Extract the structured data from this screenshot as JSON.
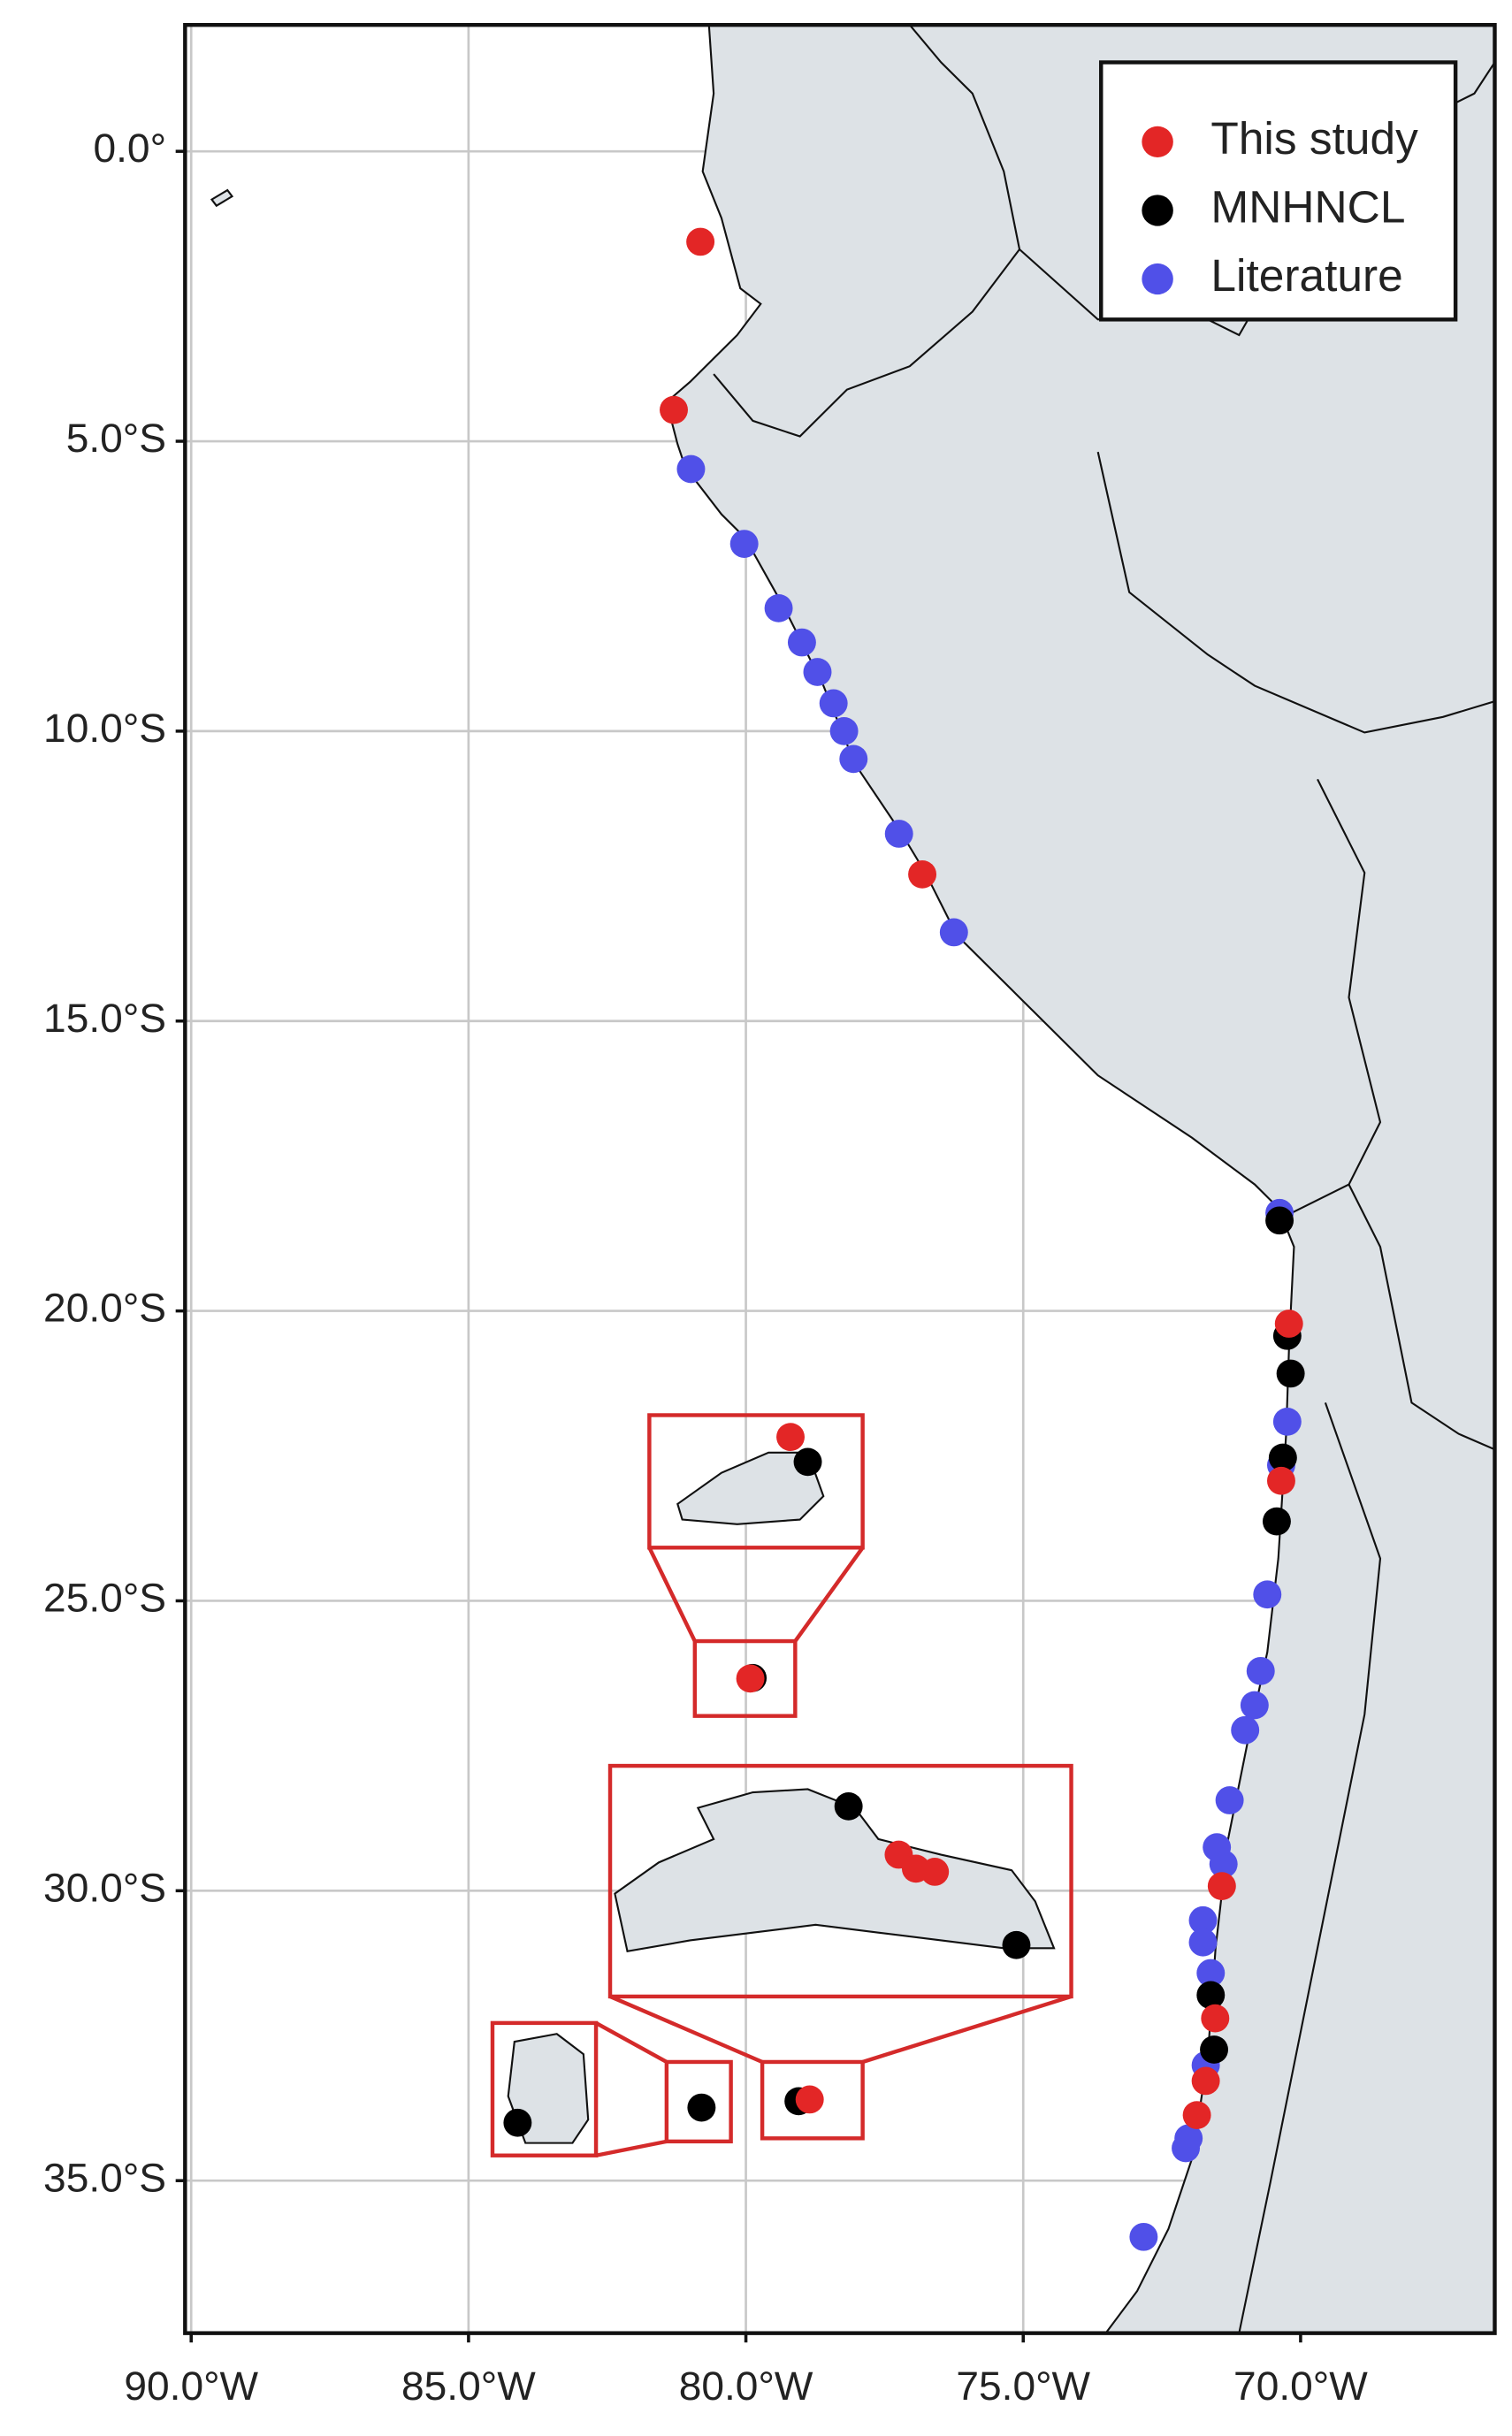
{
  "chart_data": {
    "type": "scatter",
    "xlim": [
      -90.11,
      -66.5
    ],
    "ylim": [
      -37.63,
      2.18
    ],
    "xticks": [
      {
        "value": -90,
        "label": "90.0°W"
      },
      {
        "value": -85,
        "label": "85.0°W"
      },
      {
        "value": -80,
        "label": "80.0°W"
      },
      {
        "value": -75,
        "label": "75.0°W"
      },
      {
        "value": -70,
        "label": "70.0°W"
      }
    ],
    "yticks": [
      {
        "value": 0,
        "label": "0.0°"
      },
      {
        "value": -5,
        "label": "5.0°S"
      },
      {
        "value": -10,
        "label": "10.0°S"
      },
      {
        "value": -15,
        "label": "15.0°S"
      },
      {
        "value": -20,
        "label": "20.0°S"
      },
      {
        "value": -25,
        "label": "25.0°S"
      },
      {
        "value": -30,
        "label": "30.0°S"
      },
      {
        "value": -35,
        "label": "35.0°S"
      }
    ],
    "grid": true,
    "legend": "upper right",
    "series": [
      {
        "name": "This study",
        "color": "#e32626",
        "x": [
          -80.82,
          -81.3,
          -76.82,
          -70.21,
          -70.35,
          -79.92,
          -71.42,
          -71.54,
          -71.71,
          -71.87,
          -78.85
        ],
        "y": [
          -1.56,
          -4.46,
          -12.47,
          -20.22,
          -22.93,
          -26.34,
          -29.92,
          -32.2,
          -33.28,
          -33.87,
          -33.6
        ]
      },
      {
        "name": "MNHNCL",
        "color": "#000000",
        "x": [
          -70.38,
          -70.24,
          -70.18,
          -70.32,
          -70.43,
          -71.62,
          -71.56,
          -79.05,
          -80.8,
          -79.88
        ],
        "y": [
          -18.44,
          -20.43,
          -21.08,
          -22.53,
          -23.63,
          -31.8,
          -32.74,
          -33.63,
          -33.74,
          -26.33
        ]
      },
      {
        "name": "Literature",
        "color": "#5050e8",
        "x": [
          -80.99,
          -80.03,
          -79.41,
          -78.99,
          -78.71,
          -78.42,
          -78.23,
          -78.06,
          -77.24,
          -76.25,
          -70.38,
          -70.24,
          -70.35,
          -70.6,
          -70.72,
          -70.83,
          -71.0,
          -71.28,
          -71.51,
          -71.39,
          -71.76,
          -71.76,
          -71.62,
          -71.71,
          -72.02,
          -72.07,
          -72.83
        ],
        "y": [
          -5.48,
          -6.77,
          -7.88,
          -8.47,
          -8.98,
          -9.52,
          -10.0,
          -10.48,
          -11.77,
          -13.47,
          -18.31,
          -21.91,
          -22.66,
          -24.89,
          -26.21,
          -26.8,
          -27.23,
          -28.44,
          -29.25,
          -29.54,
          -30.51,
          -30.89,
          -31.42,
          -33.01,
          -34.27,
          -34.44,
          -35.97
        ]
      }
    ]
  }
}
